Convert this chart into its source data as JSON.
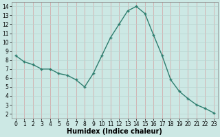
{
  "x": [
    0,
    1,
    2,
    3,
    4,
    5,
    6,
    7,
    8,
    9,
    10,
    11,
    12,
    13,
    14,
    15,
    16,
    17,
    18,
    19,
    20,
    21,
    22,
    23
  ],
  "y": [
    8.5,
    7.8,
    7.5,
    7.0,
    7.0,
    6.5,
    6.3,
    5.8,
    5.0,
    6.5,
    8.5,
    10.5,
    12.0,
    13.5,
    14.0,
    13.2,
    10.8,
    8.5,
    5.8,
    4.5,
    3.7,
    3.0,
    2.6,
    2.1
  ],
  "line_color": "#2e7d6e",
  "marker": "+",
  "marker_size": 3,
  "background_color": "#cce8e4",
  "grid_color_x": "#d4a0a0",
  "grid_color_y": "#b8d4d0",
  "xlabel": "Humidex (Indice chaleur)",
  "xlim": [
    -0.5,
    23.5
  ],
  "ylim": [
    1.5,
    14.5
  ],
  "yticks": [
    2,
    3,
    4,
    5,
    6,
    7,
    8,
    9,
    10,
    11,
    12,
    13,
    14
  ],
  "xticks": [
    0,
    1,
    2,
    3,
    4,
    5,
    6,
    7,
    8,
    9,
    10,
    11,
    12,
    13,
    14,
    15,
    16,
    17,
    18,
    19,
    20,
    21,
    22,
    23
  ],
  "tick_fontsize": 5.5,
  "xlabel_fontsize": 7,
  "line_width": 1.0,
  "markeredgewidth": 1.0
}
